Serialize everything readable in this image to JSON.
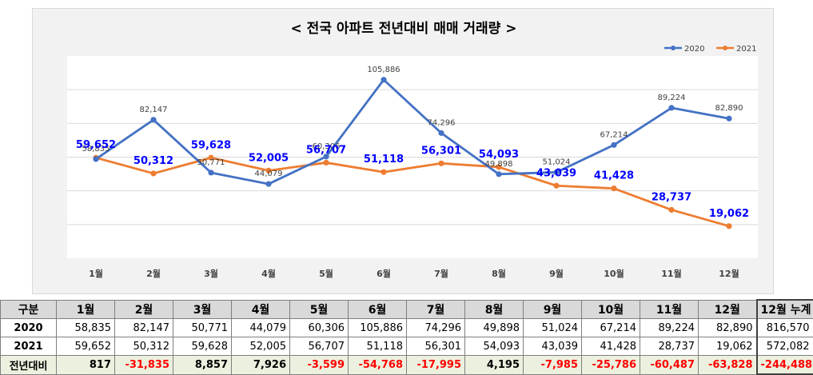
{
  "chart_data": {
    "type": "line",
    "title": "< 전국 아파트 전년대비 매매 거래량 >",
    "categories": [
      "1월",
      "2월",
      "3월",
      "4월",
      "5월",
      "6월",
      "7월",
      "8월",
      "9월",
      "10월",
      "11월",
      "12월"
    ],
    "series": [
      {
        "name": "2020",
        "color": "#4472c4",
        "values": [
          58835,
          82147,
          50771,
          44079,
          60306,
          105886,
          74296,
          49898,
          51024,
          67214,
          89224,
          82890
        ]
      },
      {
        "name": "2021",
        "color": "#ed7d31",
        "values": [
          59652,
          50312,
          59628,
          52005,
          56707,
          51118,
          56301,
          54093,
          43039,
          41428,
          28737,
          19062
        ]
      }
    ],
    "labels_2020": [
      "58,835",
      "82,147",
      "50,771",
      "44,079",
      "60,306",
      "105,886",
      "74,296",
      "49,898",
      "51,024",
      "67,214",
      "89,224",
      "82,890"
    ],
    "labels_2021": [
      "59,652",
      "50,312",
      "59,628",
      "52,005",
      "56,707",
      "51,118",
      "56,301",
      "54,093",
      "43,039",
      "41,428",
      "28,737",
      "19,062"
    ],
    "legend_position": "top-right",
    "grid": true,
    "ylim": [
      0,
      120000
    ]
  },
  "table": {
    "headers": [
      "구분",
      "1월",
      "2월",
      "3월",
      "4월",
      "5월",
      "6월",
      "7월",
      "8월",
      "9월",
      "10월",
      "11월",
      "12월",
      "12월 누계"
    ],
    "rows": [
      {
        "label": "2020",
        "cells": [
          "58,835",
          "82,147",
          "50,771",
          "44,079",
          "60,306",
          "105,886",
          "74,296",
          "49,898",
          "51,024",
          "67,214",
          "89,224",
          "82,890",
          "816,570"
        ]
      },
      {
        "label": "2021",
        "cells": [
          "59,652",
          "50,312",
          "59,628",
          "52,005",
          "56,707",
          "51,118",
          "56,301",
          "54,093",
          "43,039",
          "41,428",
          "28,737",
          "19,062",
          "572,082"
        ]
      },
      {
        "label": "전년대비",
        "cells": [
          "817",
          "-31,835",
          "8,857",
          "7,926",
          "-3,599",
          "-54,768",
          "-17,995",
          "4,195",
          "-7,985",
          "-25,786",
          "-60,487",
          "-63,828",
          "-244,488"
        ]
      }
    ]
  },
  "colors": {
    "series_2020": "#4472c4",
    "series_2021": "#ed7d31",
    "label_2021": "#0000ff",
    "negative": "#ff0000",
    "plot_bg": "#ffffff",
    "chart_bg": "#f2f2f2"
  }
}
